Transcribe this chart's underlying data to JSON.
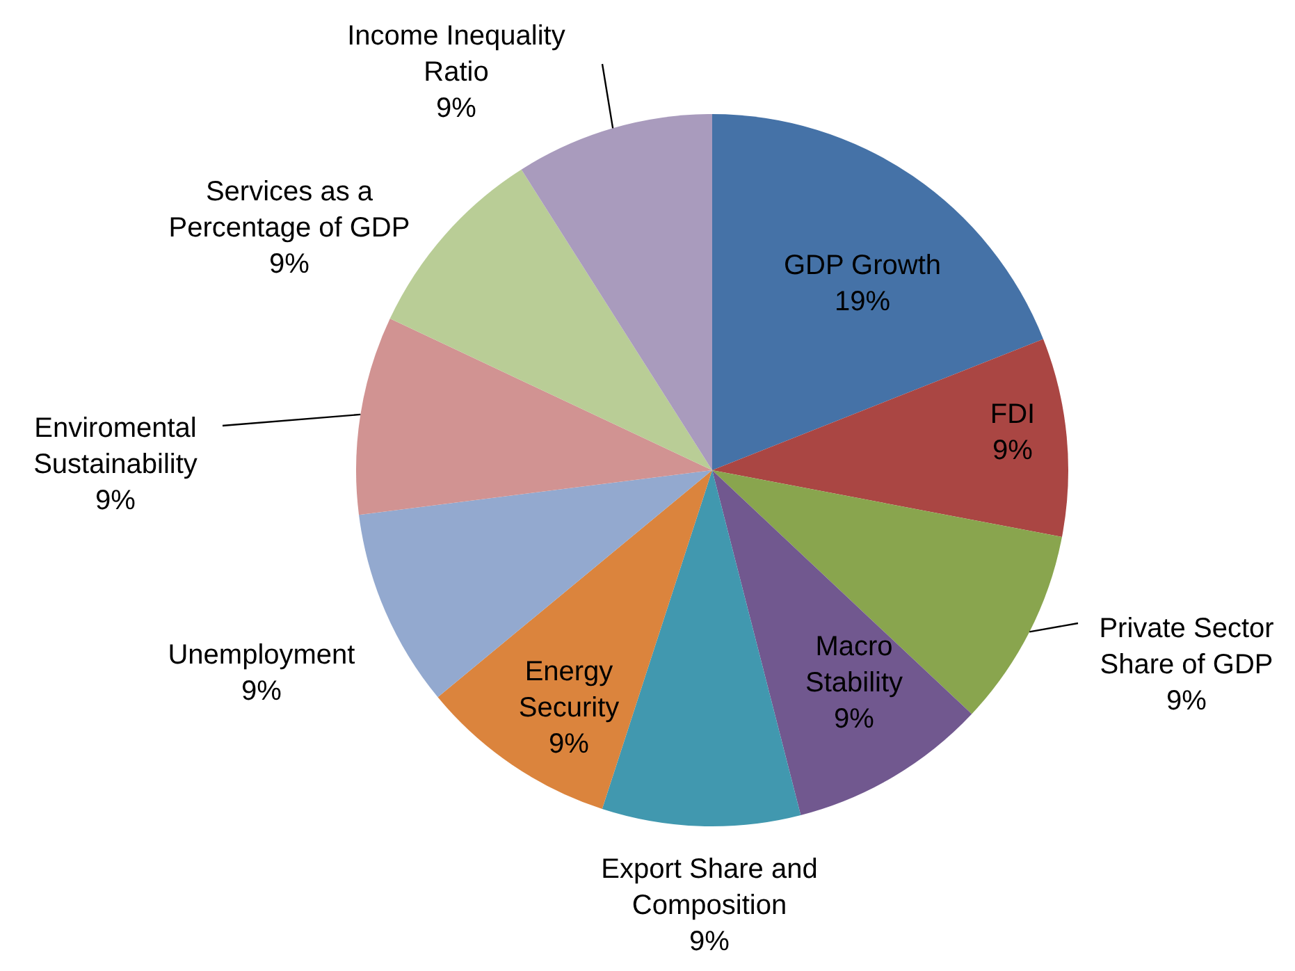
{
  "chart_data": {
    "type": "pie",
    "categories": [
      "GDP Growth",
      "FDI",
      "Private Sector Share of GDP",
      "Macro Stability",
      "Export Share and Composition",
      "Energy Security",
      "Unemployment",
      "Enviromental Sustainability",
      "Services as a Percentage of GDP",
      "Income Inequality Ratio"
    ],
    "values": [
      19,
      9,
      9,
      9,
      9,
      9,
      9,
      9,
      9,
      9
    ],
    "value_labels": [
      "19%",
      "9%",
      "9%",
      "9%",
      "9%",
      "9%",
      "9%",
      "9%",
      "9%",
      "9%"
    ],
    "colors": [
      "#4572a7",
      "#aa4643",
      "#89a54e",
      "#71588f",
      "#4198af",
      "#db843d",
      "#93a9cf",
      "#d19392",
      "#b9cd96",
      "#a99bbd"
    ]
  }
}
